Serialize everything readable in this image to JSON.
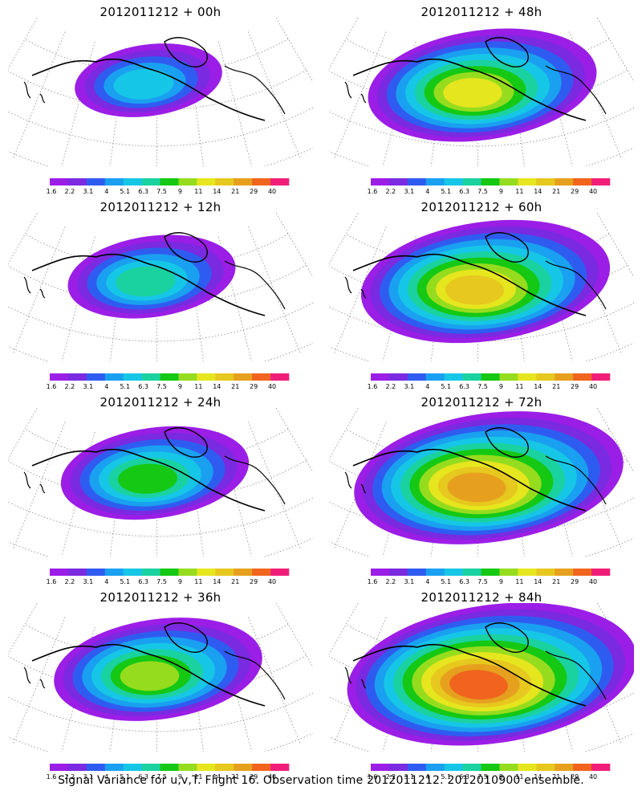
{
  "panels": [
    {
      "title": "2012011212 + 00h",
      "level": 0
    },
    {
      "title": "2012011212 + 48h",
      "level": 4
    },
    {
      "title": "2012011212 + 12h",
      "level": 1
    },
    {
      "title": "2012011212 + 60h",
      "level": 5
    },
    {
      "title": "2012011212 + 24h",
      "level": 2
    },
    {
      "title": "2012011212 + 72h",
      "level": 6
    },
    {
      "title": "2012011212 + 36h",
      "level": 3
    },
    {
      "title": "2012011212 + 84h",
      "level": 7
    }
  ],
  "colorbar": {
    "labels": [
      "1.6",
      "2.2",
      "3.1",
      "4",
      "5.1",
      "6.3",
      "7.5",
      "9",
      "11",
      "14",
      "21",
      "29",
      "40"
    ],
    "colors": [
      "#9b1ee6",
      "#7a2ae0",
      "#2f5cf0",
      "#1aa0f0",
      "#16c6e6",
      "#1ad2a0",
      "#14c814",
      "#96dc1e",
      "#e6e61e",
      "#e6c81e",
      "#e6a01e",
      "#f0641e",
      "#f01e78"
    ]
  },
  "footer": "Signal Variance for u,v,T. Flight 16. Observation time 2012011212. 2012010900 ensemble."
}
